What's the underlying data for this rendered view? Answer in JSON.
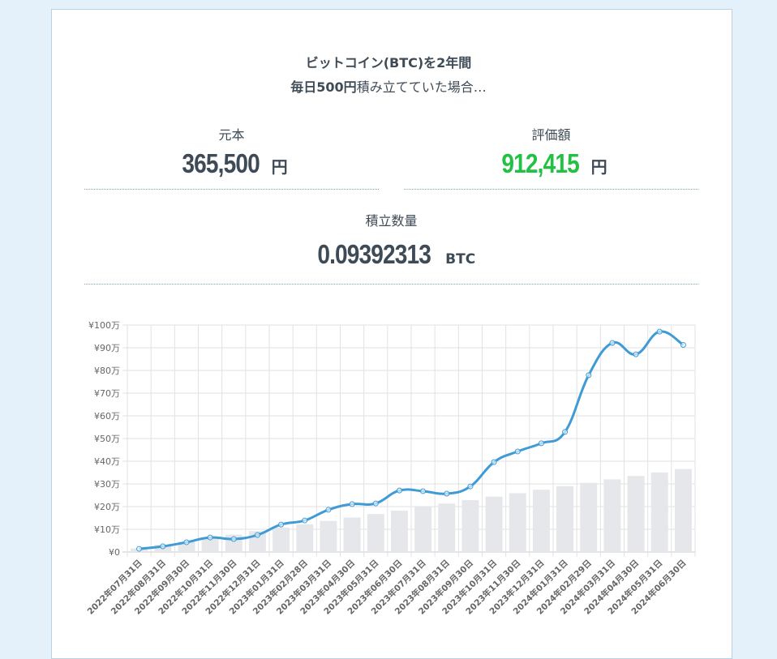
{
  "header": {
    "line1": "ビットコイン(BTC)を2年間",
    "line2_bold": "毎日500円",
    "line2_rest": "積み立てていた場合…"
  },
  "stats": {
    "principal": {
      "label": "元本",
      "value": "365,500",
      "unit": "円"
    },
    "valuation": {
      "label": "評価額",
      "value": "912,415",
      "unit": "円",
      "color": "#22c043"
    },
    "quantity": {
      "label": "積立数量",
      "value": "0.09392313",
      "unit": "BTC"
    }
  },
  "chart_data": {
    "type": "bar+line",
    "ylim": [
      0,
      100
    ],
    "y_unit": "万円",
    "y_tick_labels": [
      "¥0",
      "¥10万",
      "¥20万",
      "¥30万",
      "¥40万",
      "¥50万",
      "¥60万",
      "¥70万",
      "¥80万",
      "¥90万",
      "¥100万"
    ],
    "grid": true,
    "categories": [
      "2022年07月31日",
      "2022年08月31日",
      "2022年09月30日",
      "2022年10月31日",
      "2022年11月30日",
      "2022年12月31日",
      "2023年01月31日",
      "2023年02月28日",
      "2023年03月31日",
      "2023年04月30日",
      "2023年05月31日",
      "2023年06月30日",
      "2023年07月31日",
      "2023年08月31日",
      "2023年09月30日",
      "2023年10月31日",
      "2023年11月30日",
      "2023年12月31日",
      "2024年01月31日",
      "2024年02月29日",
      "2024年03月31日",
      "2024年04月30日",
      "2024年05月31日",
      "2024年06月30日"
    ],
    "series": [
      {
        "type": "bar",
        "color": "#e6e7ea",
        "values": [
          1.55,
          3.1,
          4.6,
          6.15,
          7.65,
          9.2,
          10.75,
          12.15,
          13.7,
          15.2,
          16.75,
          18.25,
          19.8,
          21.35,
          22.85,
          24.4,
          25.9,
          27.45,
          29.0,
          30.45,
          32.0,
          33.5,
          35.05,
          36.55
        ]
      },
      {
        "type": "line",
        "color": "#3f9bd6",
        "values": [
          1.4,
          2.5,
          4.3,
          6.4,
          5.7,
          7.5,
          12.1,
          13.9,
          18.6,
          21.1,
          21.4,
          27.1,
          26.8,
          25.7,
          28.9,
          39.6,
          44.3,
          47.9,
          52.9,
          77.9,
          92.1,
          87.1,
          97.1,
          91.24
        ]
      }
    ]
  }
}
